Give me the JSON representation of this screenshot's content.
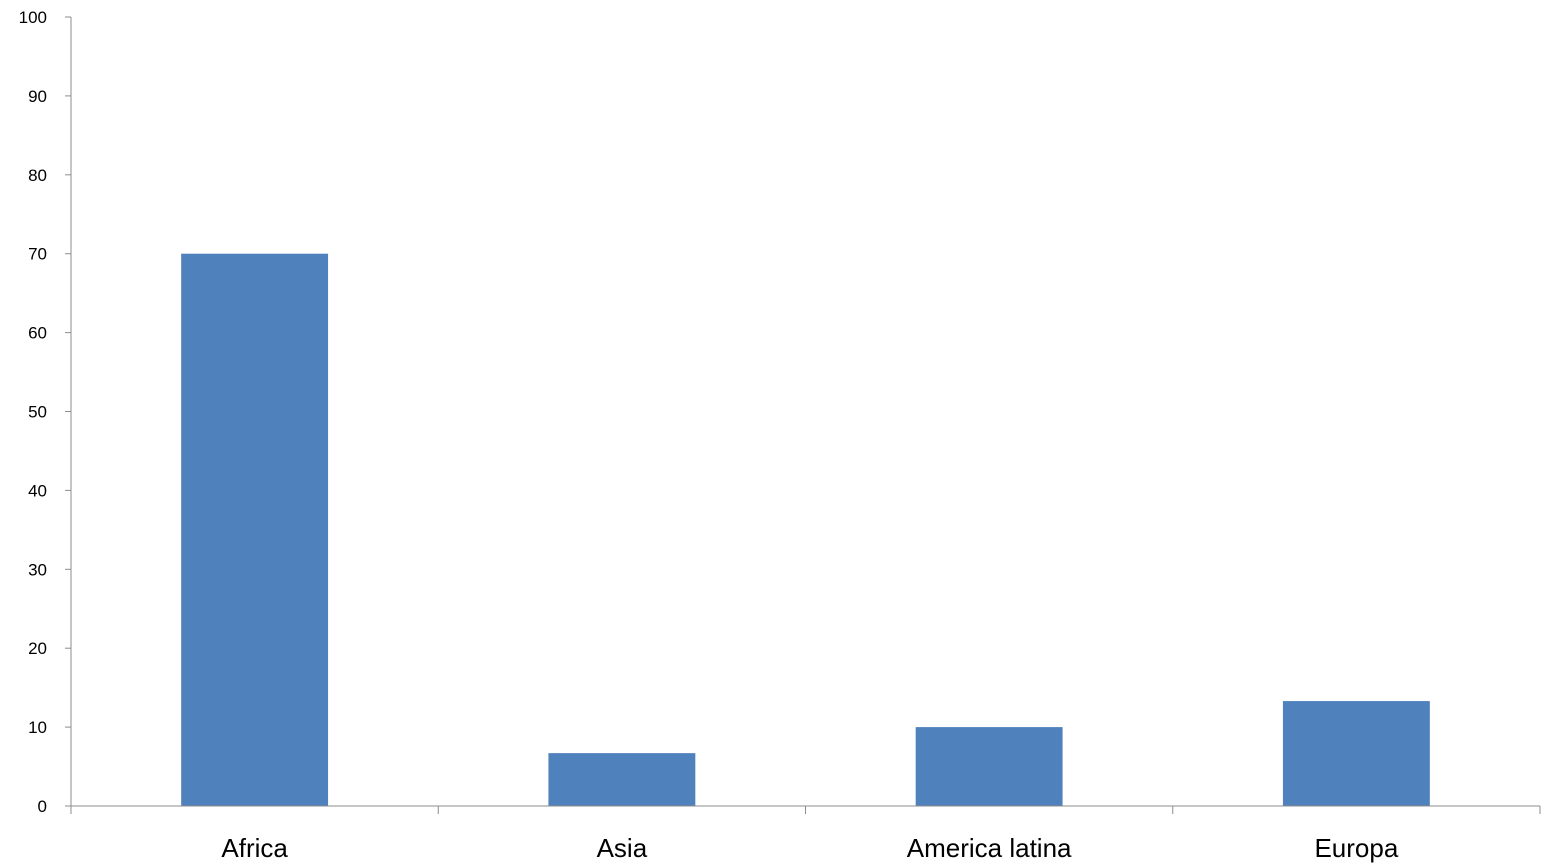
{
  "chart_data": {
    "type": "bar",
    "categories": [
      "Africa",
      "Asia",
      "America latina",
      "Europa"
    ],
    "values": [
      70,
      6.7,
      10,
      13.3
    ],
    "title": "",
    "xlabel": "",
    "ylabel": "",
    "ylim": [
      0,
      100
    ],
    "yticks": [
      0,
      10,
      20,
      30,
      40,
      50,
      60,
      70,
      80,
      90,
      100
    ],
    "grid": false,
    "legend": "none",
    "bar_color": "#4f81bd"
  }
}
